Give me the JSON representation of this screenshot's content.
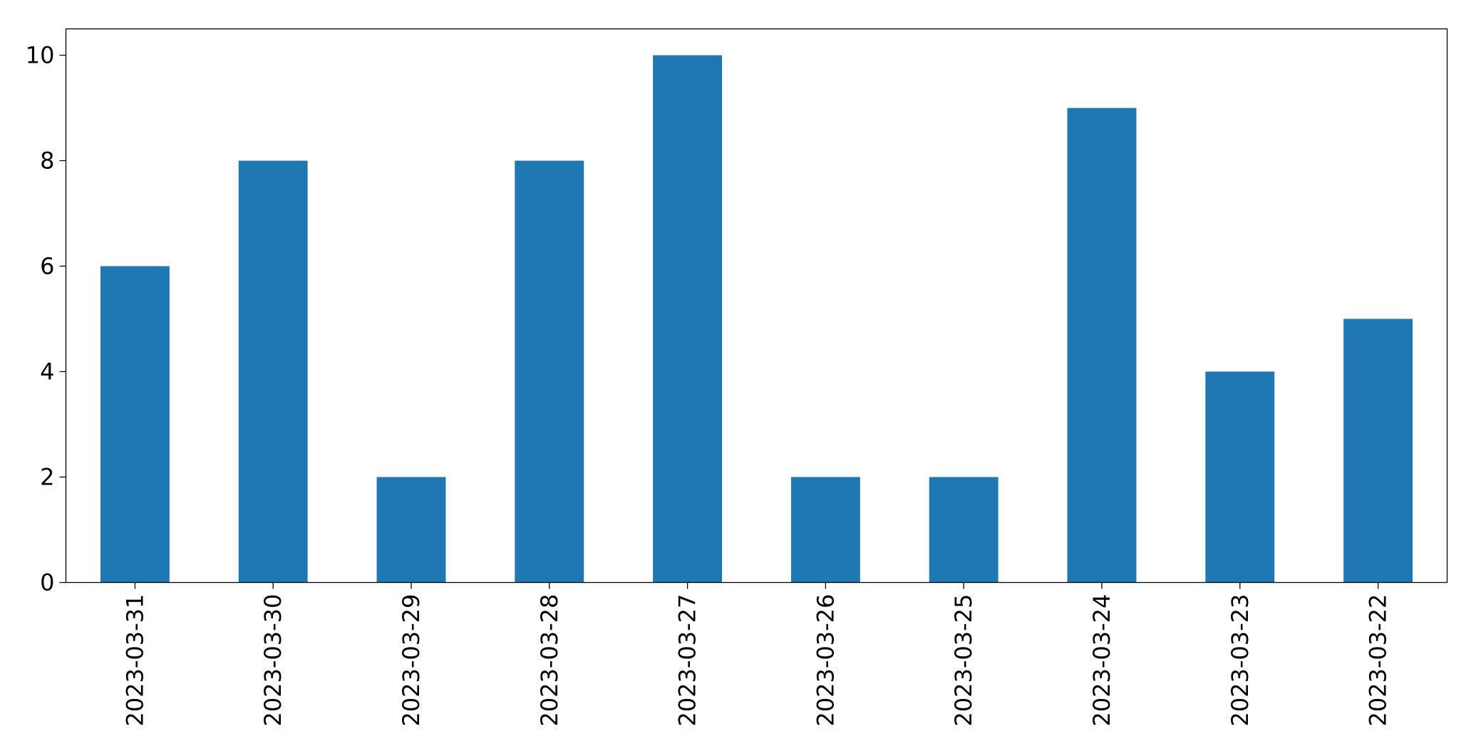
{
  "chart_data": {
    "type": "bar",
    "categories": [
      "2023-03-31",
      "2023-03-30",
      "2023-03-29",
      "2023-03-28",
      "2023-03-27",
      "2023-03-26",
      "2023-03-25",
      "2023-03-24",
      "2023-03-23",
      "2023-03-22"
    ],
    "values": [
      6,
      8,
      2,
      8,
      10,
      2,
      2,
      9,
      4,
      5
    ],
    "color": "#1f77b4",
    "ylim": [
      0,
      10.5
    ],
    "yticks": [
      0,
      2,
      4,
      6,
      8,
      10
    ],
    "grid": false
  }
}
